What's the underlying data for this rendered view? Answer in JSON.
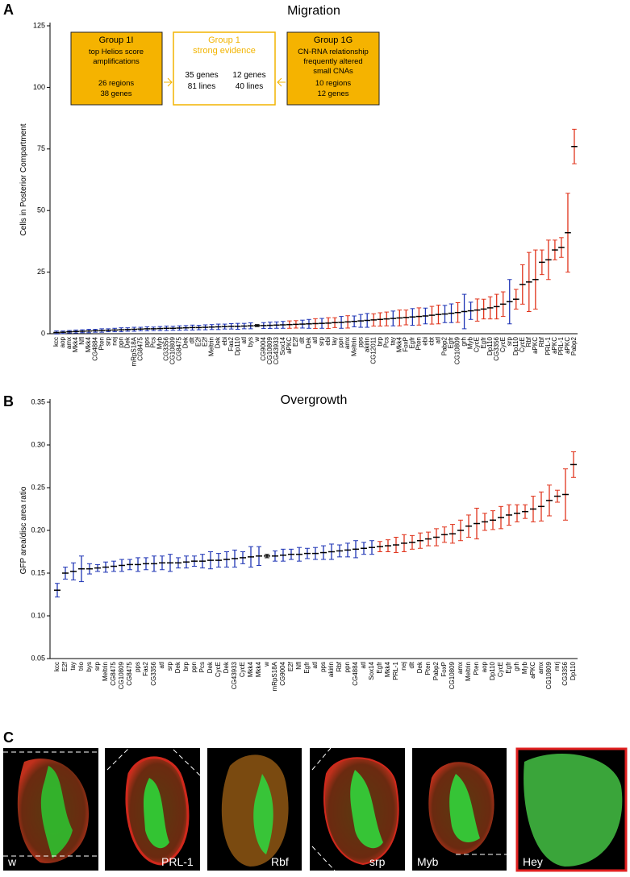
{
  "chart_data": [
    {
      "type": "dot-errorbar",
      "title": "Migration",
      "ylabel": "Cells in Posterior Compartment",
      "categories": [
        "kcc",
        "aop",
        "amx",
        "Mkk4",
        "Nfl",
        "Mkk4",
        "CG4884",
        "Pten",
        "srp",
        "nej",
        "ppn",
        "Dek",
        "mRpS18A",
        "CG8475",
        "pps",
        "Pcs",
        "Myb",
        "CG3356",
        "CG10809",
        "CG8475",
        "Dek",
        "dlt",
        "E2f",
        "E2f",
        "Meltrin",
        "Dek",
        "ebi",
        "Fas2",
        "Dp110",
        "atl",
        "bys",
        "w",
        "CG9004",
        "CG10809",
        "CG43933",
        "Sox14",
        "aPKC",
        "E2f",
        "dlt",
        "Dek",
        "atl",
        "srp",
        "ebi",
        "tay",
        "ppn",
        "amx",
        "Meltrin",
        "pps",
        "akirin",
        "CG12011",
        "brp",
        "Pcs",
        "tay",
        "Mkk4",
        "FoxP",
        "Egfr",
        "Pten",
        "ebi",
        "cbt",
        "atl",
        "Pabp2",
        "Egfr",
        "CG10809",
        "grh",
        "Myb",
        "CycE",
        "Egfr",
        "Dp110",
        "CG3356",
        "CycE",
        "srp",
        "Dp110",
        "CycE",
        "Rbf",
        "aPKC",
        "Rbf",
        "PRL-1",
        "aPKC",
        "PRL-1",
        "aPKC",
        "Pabp2"
      ],
      "values": [
        0.5,
        0.6,
        0.8,
        0.9,
        1.0,
        1.1,
        1.2,
        1.3,
        1.4,
        1.5,
        1.6,
        1.7,
        1.8,
        1.9,
        2.0,
        2.0,
        2.1,
        2.2,
        2.2,
        2.3,
        2.4,
        2.5,
        2.5,
        2.6,
        2.7,
        2.8,
        2.9,
        3.0,
        3.0,
        3.1,
        3.2,
        3.3,
        3.3,
        3.4,
        3.5,
        3.6,
        3.7,
        3.8,
        3.9,
        4.0,
        4.1,
        4.2,
        4.3,
        4.5,
        4.6,
        4.8,
        5.0,
        5.2,
        5.4,
        5.6,
        5.8,
        6.0,
        6.2,
        6.4,
        6.6,
        6.8,
        7.0,
        7.2,
        7.5,
        7.8,
        8.0,
        8.3,
        8.6,
        9.0,
        9.3,
        9.6,
        10,
        10.5,
        11,
        12,
        13,
        14,
        20,
        21,
        22,
        29,
        30,
        34,
        35,
        41,
        76
      ],
      "errors": [
        0.6,
        0.5,
        0.5,
        0.6,
        0.6,
        0.7,
        0.6,
        0.7,
        0.6,
        0.7,
        0.8,
        0.7,
        0.8,
        0.7,
        0.8,
        0.7,
        0.8,
        0.9,
        0.8,
        0.9,
        0.9,
        1.0,
        0.9,
        1.0,
        1.0,
        1.1,
        1.0,
        1.1,
        1.2,
        1.1,
        1.2,
        0.4,
        1.2,
        1.3,
        1.3,
        1.4,
        1.5,
        1.5,
        1.6,
        1.8,
        2.0,
        2.0,
        2.2,
        2.0,
        2.4,
        2.5,
        2.2,
        2.6,
        2.8,
        2.5,
        2.7,
        2.8,
        3.0,
        3.2,
        3.0,
        3.4,
        3.5,
        3.2,
        3.6,
        3.8,
        3.5,
        3.8,
        4.0,
        7,
        3.5,
        4.5,
        4,
        4.5,
        5,
        5,
        9,
        4,
        8,
        12,
        12,
        5,
        8,
        4,
        4,
        16,
        7
      ],
      "colors": [
        "#1f35b5",
        "#1f35b5",
        "#1f35b5",
        "#1f35b5",
        "#1f35b5",
        "#1f35b5",
        "#1f35b5",
        "#1f35b5",
        "#1f35b5",
        "#1f35b5",
        "#1f35b5",
        "#1f35b5",
        "#1f35b5",
        "#1f35b5",
        "#1f35b5",
        "#1f35b5",
        "#1f35b5",
        "#1f35b5",
        "#1f35b5",
        "#1f35b5",
        "#1f35b5",
        "#1f35b5",
        "#1f35b5",
        "#1f35b5",
        "#1f35b5",
        "#1f35b5",
        "#1f35b5",
        "#1f35b5",
        "#1f35b5",
        "#1f35b5",
        "#1f35b5",
        "#000000",
        "#1f35b5",
        "#1f35b5",
        "#1f35b5",
        "#1f35b5",
        "#e0341c",
        "#e0341c",
        "#1f35b5",
        "#1f35b5",
        "#e0341c",
        "#1f35b5",
        "#e0341c",
        "#e0341c",
        "#1f35b5",
        "#e0341c",
        "#1f35b5",
        "#1f35b5",
        "#1f35b5",
        "#e0341c",
        "#e0341c",
        "#e0341c",
        "#1f35b5",
        "#e0341c",
        "#e0341c",
        "#1f35b5",
        "#e0341c",
        "#1f35b5",
        "#e0341c",
        "#e0341c",
        "#1f35b5",
        "#1f35b5",
        "#e0341c",
        "#1f35b5",
        "#1f35b5",
        "#e0341c",
        "#e0341c",
        "#e0341c",
        "#e0341c",
        "#e0341c",
        "#1f35b5",
        "#e0341c",
        "#e0341c",
        "#e0341c",
        "#e0341c",
        "#e0341c",
        "#e0341c",
        "#e0341c",
        "#e0341c",
        "#e0341c",
        "#e0341c"
      ],
      "ylim": [
        0,
        125
      ],
      "yticks": [
        0,
        25,
        50,
        75,
        100,
        125
      ]
    },
    {
      "type": "dot-errorbar",
      "title": "Overgrowth",
      "ylabel": "GFP area/disc area ratio",
      "categories": [
        "kcc",
        "E2f",
        "tay",
        "trio",
        "bys",
        "srp",
        "Meltrin",
        "CG8475",
        "CG10809",
        "CG8475",
        "pps",
        "Fas2",
        "CG3356",
        "atl",
        "srp",
        "Dek",
        "brp",
        "ppn",
        "Pcs",
        "Dek",
        "CycE",
        "Dek",
        "CG43933",
        "CycE",
        "Mkk4",
        "Mkk4",
        "w",
        "mRpS18A",
        "CG9004",
        "E2f",
        "Nfl",
        "Egfr",
        "atl",
        "pps",
        "akirin",
        "Rbf",
        "ppn",
        "CG4884",
        "atl",
        "Sox14",
        "Egfr",
        "Mkk4",
        "PRL-1",
        "nej",
        "dlt",
        "Dek",
        "Pten",
        "Pabp2",
        "FoxP",
        "CG10809",
        "amx",
        "Meltrin",
        "Pten",
        "aop",
        "Dp110",
        "CycE",
        "Egfr",
        "grh",
        "Myb",
        "aPKC",
        "amx",
        "CG10809",
        "mrj",
        "CG3356",
        "Dp110"
      ],
      "values": [
        0.13,
        0.15,
        0.152,
        0.155,
        0.155,
        0.156,
        0.157,
        0.158,
        0.159,
        0.16,
        0.16,
        0.161,
        0.161,
        0.162,
        0.162,
        0.162,
        0.163,
        0.164,
        0.164,
        0.165,
        0.165,
        0.166,
        0.167,
        0.168,
        0.169,
        0.17,
        0.17,
        0.17,
        0.171,
        0.172,
        0.172,
        0.173,
        0.173,
        0.174,
        0.175,
        0.176,
        0.177,
        0.178,
        0.179,
        0.18,
        0.181,
        0.182,
        0.183,
        0.185,
        0.186,
        0.188,
        0.19,
        0.192,
        0.195,
        0.196,
        0.2,
        0.205,
        0.208,
        0.21,
        0.212,
        0.215,
        0.218,
        0.22,
        0.222,
        0.225,
        0.228,
        0.235,
        0.24,
        0.242,
        0.277
      ],
      "errors": [
        0.008,
        0.007,
        0.01,
        0.015,
        0.006,
        0.004,
        0.006,
        0.006,
        0.007,
        0.006,
        0.008,
        0.007,
        0.009,
        0.008,
        0.01,
        0.006,
        0.007,
        0.006,
        0.008,
        0.01,
        0.008,
        0.009,
        0.01,
        0.007,
        0.012,
        0.011,
        0.002,
        0.006,
        0.007,
        0.006,
        0.008,
        0.006,
        0.007,
        0.008,
        0.009,
        0.007,
        0.008,
        0.01,
        0.007,
        0.008,
        0.006,
        0.007,
        0.009,
        0.01,
        0.008,
        0.009,
        0.008,
        0.01,
        0.009,
        0.011,
        0.012,
        0.013,
        0.018,
        0.01,
        0.011,
        0.013,
        0.012,
        0.01,
        0.008,
        0.015,
        0.017,
        0.018,
        0.007,
        0.03,
        0.015
      ],
      "colors": [
        "#1f35b5",
        "#1f35b5",
        "#1f35b5",
        "#1f35b5",
        "#1f35b5",
        "#1f35b5",
        "#1f35b5",
        "#1f35b5",
        "#1f35b5",
        "#1f35b5",
        "#1f35b5",
        "#1f35b5",
        "#1f35b5",
        "#1f35b5",
        "#1f35b5",
        "#1f35b5",
        "#1f35b5",
        "#1f35b5",
        "#1f35b5",
        "#1f35b5",
        "#1f35b5",
        "#1f35b5",
        "#1f35b5",
        "#1f35b5",
        "#1f35b5",
        "#1f35b5",
        "#000000",
        "#1f35b5",
        "#1f35b5",
        "#1f35b5",
        "#1f35b5",
        "#1f35b5",
        "#1f35b5",
        "#1f35b5",
        "#1f35b5",
        "#1f35b5",
        "#1f35b5",
        "#1f35b5",
        "#1f35b5",
        "#1f35b5",
        "#e0341c",
        "#e0341c",
        "#e0341c",
        "#e0341c",
        "#e0341c",
        "#e0341c",
        "#e0341c",
        "#e0341c",
        "#e0341c",
        "#e0341c",
        "#e0341c",
        "#e0341c",
        "#e0341c",
        "#e0341c",
        "#e0341c",
        "#e0341c",
        "#e0341c",
        "#e0341c",
        "#e0341c",
        "#e0341c",
        "#e0341c",
        "#e0341c",
        "#e0341c",
        "#e0341c",
        "#e0341c"
      ],
      "ylim": [
        0.05,
        0.35
      ],
      "yticks": [
        0.05,
        {
          "value": 0.1,
          "label": "0.10"
        },
        0.15,
        {
          "value": 0.2,
          "label": "0.20"
        },
        0.25,
        {
          "value": 0.3,
          "label": "0.30"
        },
        0.35
      ]
    }
  ],
  "panel_labels": [
    "A",
    "B",
    "C"
  ],
  "group_boxes": [
    {
      "title": "Group 1I",
      "lines": [
        "top Helios score",
        "amplifications",
        "",
        "26 regions",
        "38 genes"
      ]
    },
    {
      "title": "Group 1",
      "subtitle": "strong evidence",
      "left": [
        "35 genes",
        "81 lines"
      ],
      "right": [
        "12 genes",
        "40 lines"
      ]
    },
    {
      "title": "Group 1G",
      "lines": [
        "CN-RNA relationship",
        "frequently altered",
        "small CNAs",
        "10 regions",
        "12 genes"
      ]
    }
  ],
  "images": [
    {
      "label": "w"
    },
    {
      "label": "PRL-1"
    },
    {
      "label": "Rbf"
    },
    {
      "label": "srp"
    },
    {
      "label": "Myb"
    },
    {
      "label": "Hey"
    }
  ]
}
